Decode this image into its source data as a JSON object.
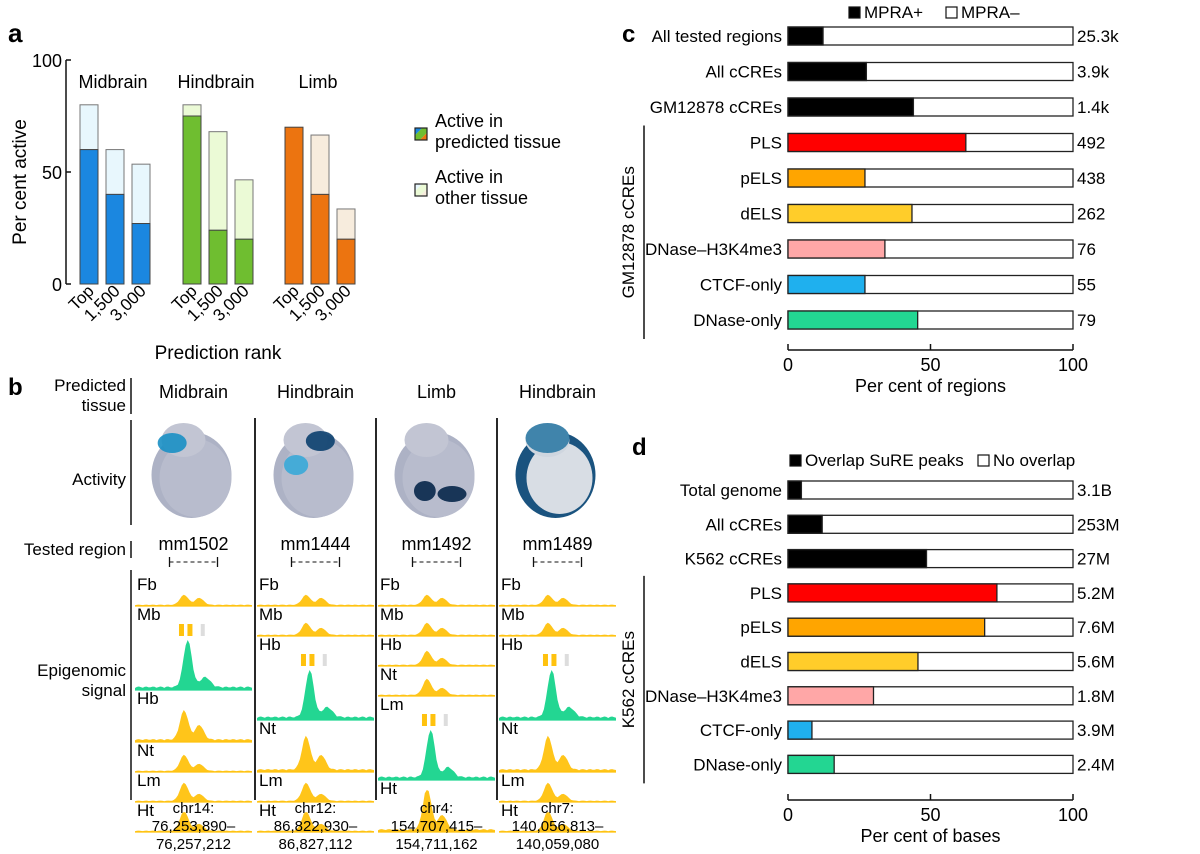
{
  "panel_letters": {
    "a": "a",
    "b": "b",
    "c": "c",
    "d": "d"
  },
  "chart_data": [
    {
      "id": "a",
      "type": "bar",
      "stacked": true,
      "ylabel": "Per cent active",
      "xlabel": "Prediction rank",
      "ylim": [
        0,
        100
      ],
      "yticks": [
        0,
        50,
        100
      ],
      "groups": [
        {
          "name": "Midbrain",
          "color": "#1b87e0",
          "light": "#e8f7fd",
          "categories": [
            "Top",
            "1,500",
            "3,000"
          ],
          "predicted": [
            60,
            40,
            27
          ],
          "total": [
            80,
            60,
            53.5
          ]
        },
        {
          "name": "Hindbrain",
          "color": "#6fbe30",
          "light": "#ebfad6",
          "categories": [
            "Top",
            "1,500",
            "3,000"
          ],
          "predicted": [
            75,
            24,
            20
          ],
          "total": [
            80,
            68,
            46.5
          ]
        },
        {
          "name": "Limb",
          "color": "#ec7410",
          "light": "#f7ecdd",
          "categories": [
            "Top",
            "1,500",
            "3,000"
          ],
          "predicted": [
            70,
            40,
            20
          ],
          "total": [
            70,
            66.5,
            33.5
          ]
        }
      ],
      "legend": [
        {
          "label_lines": [
            "Active in",
            "predicted tissue"
          ],
          "kind": "predicted"
        },
        {
          "label_lines": [
            "Active in",
            "other tissue"
          ],
          "kind": "other"
        }
      ]
    },
    {
      "id": "c",
      "type": "bar",
      "orientation": "horizontal",
      "stacked": true,
      "xlabel": "Per cent of regions",
      "xlim": [
        0,
        100
      ],
      "xticks": [
        0,
        50,
        100
      ],
      "legend": [
        {
          "label": "MPRA+",
          "fill": "#000000"
        },
        {
          "label": "MPRA–",
          "fill": "#ffffff"
        }
      ],
      "bracket_label": "GM12878 cCREs",
      "bracket_from": 3,
      "rows": [
        {
          "label": "All tested regions",
          "value": 12.3,
          "count": "25.3k",
          "color": "#000000"
        },
        {
          "label": "All cCREs",
          "value": 27.5,
          "count": "3.9k",
          "color": "#000000"
        },
        {
          "label": "GM12878 cCREs",
          "value": 44,
          "count": "1.4k",
          "color": "#000000"
        },
        {
          "label": "PLS",
          "value": 62.4,
          "count": "492",
          "color": "#ff0000"
        },
        {
          "label": "pELS",
          "value": 27,
          "count": "438",
          "color": "#ffa500"
        },
        {
          "label": "dELS",
          "value": 43.5,
          "count": "262",
          "color": "#ffcd2a"
        },
        {
          "label": "DNase–H3K4me3",
          "value": 34,
          "count": "76",
          "color": "#ffa7a7"
        },
        {
          "label": "CTCF-only",
          "value": 27,
          "count": "55",
          "color": "#1fb0ee"
        },
        {
          "label": "DNase-only",
          "value": 45.5,
          "count": "79",
          "color": "#23d692"
        }
      ]
    },
    {
      "id": "d",
      "type": "bar",
      "orientation": "horizontal",
      "stacked": true,
      "xlabel": "Per cent of bases",
      "xlim": [
        0,
        100
      ],
      "xticks": [
        0,
        50,
        100
      ],
      "legend": [
        {
          "label": "Overlap SuRE peaks",
          "fill": "#000000"
        },
        {
          "label": "No overlap",
          "fill": "#ffffff"
        }
      ],
      "bracket_label": "K562 cCREs",
      "bracket_from": 3,
      "rows": [
        {
          "label": "Total genome",
          "value": 4.7,
          "count": "3.1B",
          "color": "#000000"
        },
        {
          "label": "All cCREs",
          "value": 12,
          "count": "253M",
          "color": "#000000"
        },
        {
          "label": "K562 cCREs",
          "value": 48.6,
          "count": "27M",
          "color": "#000000"
        },
        {
          "label": "PLS",
          "value": 73.3,
          "count": "5.2M",
          "color": "#ff0000"
        },
        {
          "label": "pELS",
          "value": 69,
          "count": "7.6M",
          "color": "#ffa500"
        },
        {
          "label": "dELS",
          "value": 45.6,
          "count": "5.6M",
          "color": "#ffcd2a"
        },
        {
          "label": "DNase–H3K4me3",
          "value": 30,
          "count": "1.8M",
          "color": "#ffa7a7"
        },
        {
          "label": "CTCF-only",
          "value": 8.4,
          "count": "3.9M",
          "color": "#1fb0ee"
        },
        {
          "label": "DNase-only",
          "value": 16.2,
          "count": "2.4M",
          "color": "#23d692"
        }
      ]
    }
  ],
  "panel_b": {
    "row_labels": {
      "predicted_tissue": [
        "Predicted",
        "tissue"
      ],
      "activity": "Activity",
      "tested_region": "Tested region",
      "epigenomic_signal": [
        "Epigenomic",
        "signal"
      ]
    },
    "signal_colors": {
      "predicted": "#23d692",
      "other": "#ffc20e",
      "grey": "#dddddd"
    },
    "columns": [
      {
        "tissue": "Midbrain",
        "region_id": "mm1502",
        "embryo_stain": "midbrain",
        "tracks": [
          "Fb",
          "Mb",
          "Hb",
          "Nt",
          "Lm",
          "Ht"
        ],
        "highlight": "Mb",
        "coords": [
          "chr14:",
          "76,253,890–",
          "76,257,212"
        ]
      },
      {
        "tissue": "Hindbrain",
        "region_id": "mm1444",
        "embryo_stain": "hindbrain",
        "tracks": [
          "Fb",
          "Mb",
          "Hb",
          "Nt",
          "Lm",
          "Ht"
        ],
        "highlight": "Hb",
        "coords": [
          "chr12:",
          "86,822,930–",
          "86,827,112"
        ]
      },
      {
        "tissue": "Limb",
        "region_id": "mm1492",
        "embryo_stain": "limb",
        "tracks": [
          "Fb",
          "Mb",
          "Hb",
          "Nt",
          "Lm",
          "Ht"
        ],
        "highlight": "Lm",
        "coords": [
          "chr4:",
          "154,707,415–",
          "154,711,162"
        ]
      },
      {
        "tissue": "Hindbrain",
        "region_id": "mm1489",
        "embryo_stain": "hindbrain-strong",
        "tracks": [
          "Fb",
          "Mb",
          "Hb",
          "Nt",
          "Lm",
          "Ht"
        ],
        "highlight": "Hb",
        "coords": [
          "chr7:",
          "140,056,813–",
          "140,059,080"
        ]
      }
    ]
  }
}
